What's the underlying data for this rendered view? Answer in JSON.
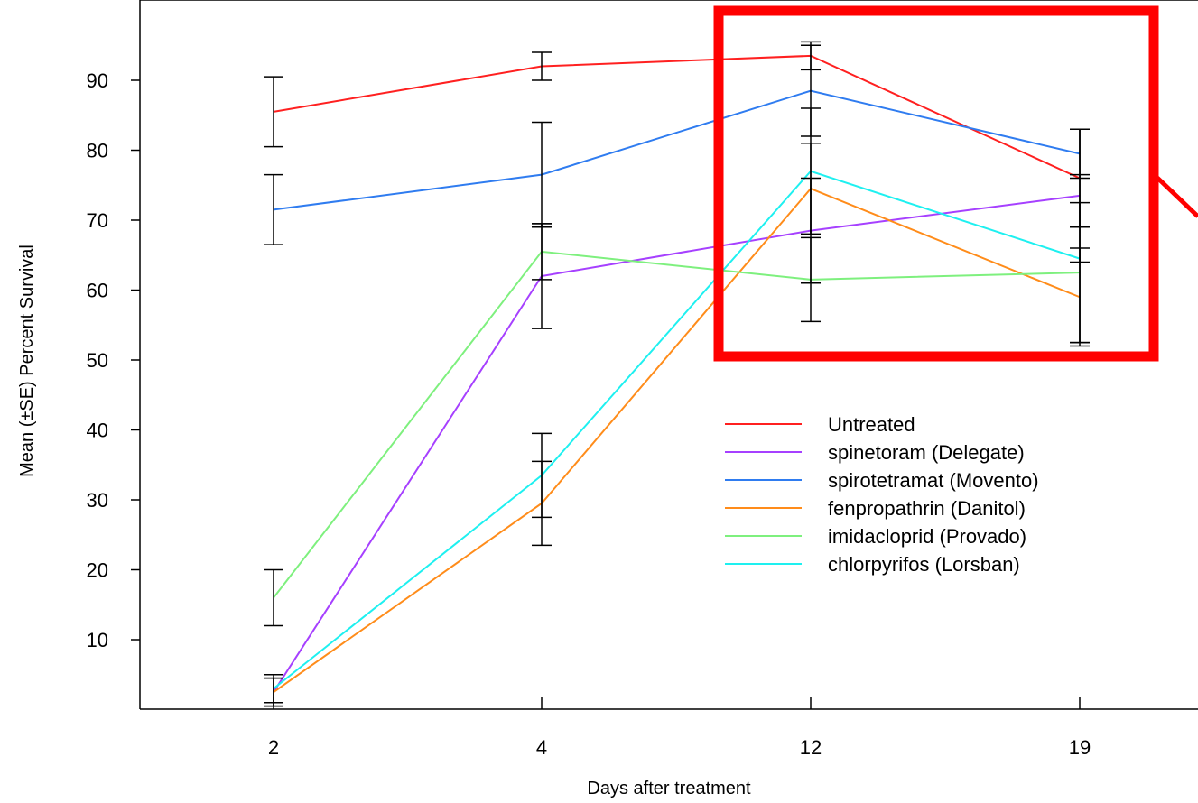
{
  "chart_data": {
    "type": "line",
    "title": "",
    "xlabel": "Days after treatment",
    "ylabel": "Mean (±SE) Percent Survival",
    "categories": [
      "2",
      "4",
      "12",
      "19"
    ],
    "ylim": [
      0,
      100
    ],
    "yticks": [
      10,
      20,
      30,
      40,
      50,
      60,
      70,
      80,
      90
    ],
    "grid": false,
    "legend_position": "center-right",
    "series": [
      {
        "name": "Untreated",
        "color": "#ff2020",
        "values": [
          85.5,
          92,
          93.5,
          76
        ],
        "se": [
          5,
          2,
          2,
          7
        ]
      },
      {
        "name": "spinetoram  (Delegate)",
        "color": "#a640ff",
        "values": [
          2.5,
          62,
          68.5,
          73.5
        ],
        "se": [
          2,
          7.5,
          7.5,
          9.5
        ]
      },
      {
        "name": "spirotetramat  (Movento)",
        "color": "#2f7cf0",
        "values": [
          71.5,
          76.5,
          88.5,
          79.5
        ],
        "se": [
          5,
          7.5,
          6.5,
          3.5
        ]
      },
      {
        "name": "fenpropathrin  (Danitol)",
        "color": "#ff8c1a",
        "values": [
          2.5,
          29.5,
          74.5,
          59
        ],
        "se": [
          2,
          6,
          6.5,
          7
        ]
      },
      {
        "name": "imidacloprid  (Provado)",
        "color": "#7ef07e",
        "values": [
          16,
          65.5,
          61.5,
          62.5
        ],
        "se": [
          4,
          4,
          6,
          10
        ]
      },
      {
        "name": "chlorpyrifos  (Lorsban)",
        "color": "#1ef0f0",
        "values": [
          3,
          33.5,
          77,
          64.5
        ],
        "se": [
          2,
          6,
          9,
          12
        ]
      }
    ],
    "annotations": [
      {
        "type": "highlight-box",
        "color": "#ff0000",
        "covers_categories": [
          "12",
          "19"
        ]
      }
    ]
  }
}
